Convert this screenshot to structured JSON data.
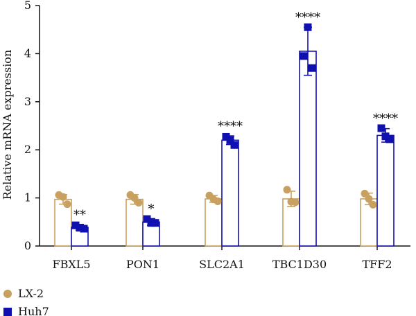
{
  "chart_data": {
    "type": "bar",
    "ylabel": "Relative mRNA expression",
    "ylim": [
      0,
      5
    ],
    "yticks": [
      "0",
      "1",
      "2",
      "3",
      "4",
      "5"
    ],
    "categories": [
      "FBXL5",
      "PON1",
      "SLC2A1",
      "TBC1D30",
      "TFF2"
    ],
    "series": [
      {
        "name": "LX-2",
        "color": "#C8A060",
        "marker": "circle",
        "values": [
          0.97,
          0.97,
          0.98,
          0.98,
          0.98
        ],
        "error": [
          0.1,
          0.1,
          0.07,
          0.16,
          0.12
        ],
        "points": [
          [
            1.06,
            1.02,
            0.87
          ],
          [
            1.06,
            1.0,
            0.9
          ],
          [
            1.05,
            0.97,
            0.93
          ],
          [
            1.17,
            0.92,
            0.91
          ],
          [
            1.09,
            0.98,
            0.86
          ]
        ]
      },
      {
        "name": "Huh7",
        "color": "#1010B0",
        "marker": "square",
        "values": [
          0.39,
          0.5,
          2.2,
          4.05,
          2.3
        ],
        "error": [
          0.06,
          0.07,
          0.09,
          0.5,
          0.14
        ],
        "points": [
          [
            0.43,
            0.38,
            0.36
          ],
          [
            0.56,
            0.48,
            0.48
          ],
          [
            2.27,
            2.2,
            2.1
          ],
          [
            3.95,
            4.55,
            3.7
          ],
          [
            2.45,
            2.28,
            2.22
          ]
        ]
      }
    ],
    "significance": [
      "**",
      "*",
      "****",
      "****",
      "****"
    ],
    "legend_position": "bottom-left",
    "grid": false
  }
}
